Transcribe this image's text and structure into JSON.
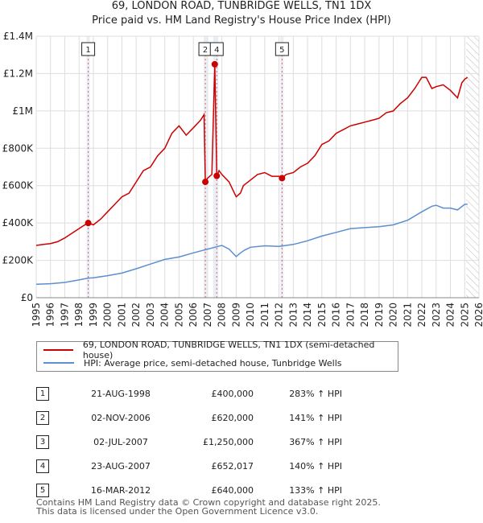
{
  "title": {
    "line1": "69, LONDON ROAD, TUNBRIDGE WELLS, TN1 1DX",
    "line2": "Price paid vs. HM Land Registry's House Price Index (HPI)"
  },
  "legend": {
    "property": "69, LONDON ROAD, TUNBRIDGE WELLS, TN1 1DX (semi-detached house)",
    "hpi": "HPI: Average price, semi-detached house, Tunbridge Wells"
  },
  "colors": {
    "property": "#cc0000",
    "hpi": "#5b8fcf",
    "grid": "#dddddd",
    "shade": "#e8eef6",
    "marker_line": "#e06060"
  },
  "sales": [
    {
      "num": "1",
      "date": "21-AUG-1998",
      "price": "£400,000",
      "hpi": "283% ↑ HPI"
    },
    {
      "num": "2",
      "date": "02-NOV-2006",
      "price": "£620,000",
      "hpi": "141% ↑ HPI"
    },
    {
      "num": "3",
      "date": "02-JUL-2007",
      "price": "£1,250,000",
      "hpi": "367% ↑ HPI"
    },
    {
      "num": "4",
      "date": "23-AUG-2007",
      "price": "£652,017",
      "hpi": "140% ↑ HPI"
    },
    {
      "num": "5",
      "date": "16-MAR-2012",
      "price": "£640,000",
      "hpi": "133% ↑ HPI"
    }
  ],
  "footer": {
    "line1": "Contains HM Land Registry data © Crown copyright and database right 2025.",
    "line2": "This data is licensed under the Open Government Licence v3.0."
  },
  "chart_data": {
    "type": "line",
    "x_range": [
      1995,
      2026
    ],
    "ylim": [
      0,
      1400000
    ],
    "y_ticks": [
      0,
      200000,
      400000,
      600000,
      800000,
      1000000,
      1200000,
      1400000
    ],
    "y_tick_labels": [
      "£0",
      "£200K",
      "£400K",
      "£600K",
      "£800K",
      "£1M",
      "£1.2M",
      "£1.4M"
    ],
    "x_ticks": [
      1995,
      1996,
      1997,
      1998,
      1999,
      2000,
      2001,
      2002,
      2003,
      2004,
      2005,
      2006,
      2007,
      2008,
      2009,
      2010,
      2011,
      2012,
      2013,
      2014,
      2015,
      2016,
      2017,
      2018,
      2019,
      2020,
      2021,
      2022,
      2023,
      2024,
      2025,
      2026
    ],
    "future_from": 2025.1,
    "series": [
      {
        "name": "69, LONDON ROAD, TUNBRIDGE WELLS, TN1 1DX (semi-detached house)",
        "x": [
          1995,
          1995.5,
          1996,
          1996.5,
          1997,
          1997.5,
          1998,
          1998.3,
          1998.64,
          1999,
          1999.5,
          2000,
          2000.5,
          2001,
          2001.5,
          2002,
          2002.5,
          2003,
          2003.5,
          2004,
          2004.5,
          2005,
          2005.5,
          2006,
          2006.5,
          2006.75,
          2006.84,
          2007,
          2007.3,
          2007.5,
          2007.64,
          2007.7,
          2007.8,
          2008,
          2008.5,
          2009,
          2009.3,
          2009.5,
          2010,
          2010.5,
          2011,
          2011.5,
          2012,
          2012.21,
          2012.5,
          2013,
          2013.5,
          2014,
          2014.5,
          2015,
          2015.5,
          2016,
          2016.5,
          2017,
          2017.5,
          2018,
          2018.5,
          2019,
          2019.5,
          2020,
          2020.5,
          2021,
          2021.5,
          2022,
          2022.3,
          2022.7,
          2023,
          2023.5,
          2024,
          2024.5,
          2024.8,
          2025,
          2025.2
        ],
        "y": [
          280000,
          285000,
          290000,
          300000,
          320000,
          345000,
          370000,
          385000,
          400000,
          390000,
          420000,
          460000,
          500000,
          540000,
          560000,
          620000,
          680000,
          700000,
          760000,
          800000,
          880000,
          920000,
          870000,
          910000,
          950000,
          980000,
          620000,
          640000,
          660000,
          1250000,
          652017,
          660000,
          680000,
          660000,
          620000,
          540000,
          560000,
          600000,
          630000,
          660000,
          670000,
          650000,
          650000,
          640000,
          660000,
          670000,
          700000,
          720000,
          760000,
          820000,
          840000,
          880000,
          900000,
          920000,
          930000,
          940000,
          950000,
          960000,
          990000,
          1000000,
          1040000,
          1070000,
          1120000,
          1180000,
          1180000,
          1120000,
          1130000,
          1140000,
          1110000,
          1070000,
          1150000,
          1170000,
          1180000
        ]
      },
      {
        "name": "HPI: Average price, semi-detached house, Tunbridge Wells",
        "x": [
          1995,
          1996,
          1997,
          1998,
          1998.64,
          1999,
          2000,
          2001,
          2002,
          2003,
          2004,
          2005,
          2006,
          2007,
          2007.5,
          2008,
          2008.5,
          2009,
          2009.3,
          2009.6,
          2010,
          2011,
          2012,
          2013,
          2014,
          2015,
          2016,
          2017,
          2018,
          2019,
          2020,
          2021,
          2022,
          2022.7,
          2023,
          2023.5,
          2024,
          2024.5,
          2025,
          2025.2
        ],
        "y": [
          72000,
          75000,
          82000,
          95000,
          105000,
          107000,
          118000,
          132000,
          155000,
          180000,
          205000,
          218000,
          240000,
          260000,
          270000,
          280000,
          260000,
          220000,
          240000,
          255000,
          270000,
          278000,
          275000,
          285000,
          305000,
          330000,
          350000,
          370000,
          375000,
          380000,
          390000,
          415000,
          460000,
          490000,
          495000,
          480000,
          480000,
          470000,
          500000,
          500000
        ]
      }
    ],
    "sale_points": [
      {
        "label": "1",
        "x": 1998.64,
        "y": 400000
      },
      {
        "label": "2",
        "x": 2006.84,
        "y": 620000
      },
      {
        "label": "3",
        "x": 2007.5,
        "y": 1250000
      },
      {
        "label": "4",
        "x": 2007.64,
        "y": 652017
      },
      {
        "label": "5",
        "x": 2012.21,
        "y": 640000
      }
    ],
    "boxed_labels": [
      "1",
      "2",
      "4",
      "5"
    ]
  }
}
